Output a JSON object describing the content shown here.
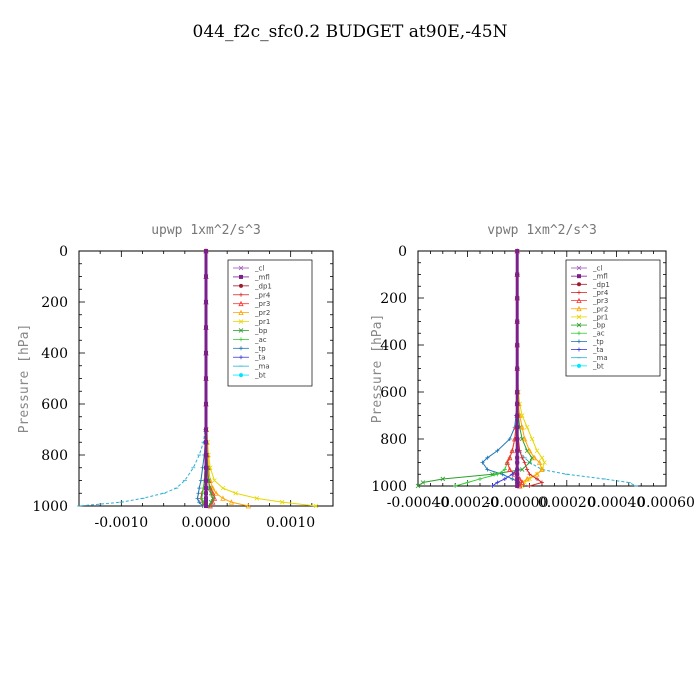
{
  "title": "044_f2c_sfc0.2  BUDGET at90E,-45N",
  "legend_entries": [
    "_cl",
    "_mfl",
    "_dp1",
    "_pr4",
    "_pr3",
    "_pr2",
    "_pr1",
    "_bp",
    "_ac",
    "_tp",
    "_ta",
    "_ma",
    "_bt"
  ],
  "colors": {
    "_cl": "#9b59b6",
    "_mfl": "#7a1f8c",
    "_dp1": "#9b1b30",
    "_pr4": "#d62728",
    "_pr3": "#ff3333",
    "_pr2": "#ffa500",
    "_pr1": "#e6d800",
    "_bp": "#2ca02c",
    "_ac": "#33cc33",
    "_tp": "#1f77b4",
    "_ta": "#3a3adf",
    "_ma": "#2ab0d6",
    "_bt": "#00e5ff"
  },
  "chart_data": [
    {
      "type": "line",
      "title": "upwp   1xm^2/s^3",
      "ylabel": "Pressure [hPa]",
      "xlim": [
        -0.0015,
        0.0015
      ],
      "ylim": [
        1000,
        0
      ],
      "xticks": [
        -0.001,
        0.0,
        0.001
      ],
      "xtick_labels": [
        "-0.0010",
        "0.0000",
        "0.0010"
      ],
      "yticks": [
        0,
        200,
        400,
        600,
        800,
        1000
      ],
      "ytick_labels": [
        "0",
        "200",
        "400",
        "600",
        "800",
        "1000"
      ],
      "legend": "top-right",
      "y": [
        0,
        100,
        200,
        300,
        400,
        500,
        600,
        700,
        750,
        800,
        850,
        900,
        930,
        950,
        970,
        985,
        1000
      ],
      "series": [
        {
          "name": "_ma",
          "values": [
            0,
            0,
            0,
            0,
            0,
            0,
            0,
            -1e-05,
            -3e-05,
            -8e-05,
            -0.00015,
            -0.00025,
            -0.00035,
            -0.0005,
            -0.00075,
            -0.001,
            -0.0015
          ]
        },
        {
          "name": "_tp",
          "values": [
            0,
            0,
            0,
            0,
            0,
            0,
            0,
            0,
            -1e-05,
            -2e-05,
            -4e-05,
            -6e-05,
            -8e-05,
            -9e-05,
            -0.0001,
            -8e-05,
            -4e-05
          ]
        },
        {
          "name": "_pr1",
          "values": [
            0,
            0,
            0,
            0,
            0,
            0,
            0,
            1e-05,
            2e-05,
            3e-05,
            5e-05,
            0.0001,
            0.0002,
            0.00035,
            0.0006,
            0.0009,
            0.0013
          ]
        },
        {
          "name": "_pr2",
          "values": [
            0,
            0,
            0,
            0,
            0,
            0,
            0,
            5e-06,
            1e-05,
            2e-05,
            3e-05,
            5e-05,
            8e-05,
            0.00012,
            0.0002,
            0.0003,
            0.0005
          ]
        },
        {
          "name": "_pr3",
          "values": [
            0,
            0,
            0,
            0,
            0,
            0,
            0,
            0,
            0,
            1e-05,
            2e-05,
            3e-05,
            5e-05,
            8e-05,
            0.0001,
            8e-05,
            5e-05
          ]
        },
        {
          "name": "_pr4",
          "values": [
            0,
            0,
            0,
            0,
            0,
            0,
            0,
            0,
            0,
            0,
            -1e-05,
            -2e-05,
            -3e-05,
            -5e-05,
            -6e-05,
            -4e-05,
            -2e-05
          ]
        },
        {
          "name": "_bp",
          "values": [
            0,
            0,
            0,
            0,
            0,
            0,
            0,
            0,
            0,
            1e-05,
            2e-05,
            3e-05,
            4e-05,
            6e-05,
            8e-05,
            6e-05,
            3e-05
          ]
        },
        {
          "name": "_ac",
          "values": [
            0,
            0,
            0,
            0,
            0,
            0,
            0,
            0,
            0,
            -5e-06,
            -1e-05,
            -2e-05,
            -3e-05,
            -4e-05,
            -5e-05,
            -3e-05,
            -1e-05
          ]
        },
        {
          "name": "_dp1",
          "values": [
            0,
            0,
            0,
            0,
            0,
            0,
            0,
            0,
            0,
            0,
            0,
            0,
            0,
            0,
            0,
            0,
            0
          ]
        },
        {
          "name": "_mfl",
          "values": [
            0,
            0,
            0,
            0,
            0,
            0,
            0,
            0,
            0,
            0,
            0,
            0,
            0,
            0,
            0,
            0,
            0
          ]
        }
      ]
    },
    {
      "type": "line",
      "title": "vpwp   1xm^2/s^3",
      "ylabel": "Pressure [hPa]",
      "xlim": [
        -0.0004,
        0.0006
      ],
      "ylim": [
        1000,
        0
      ],
      "xticks": [
        -0.0004,
        -0.0002,
        0.0,
        0.0002,
        0.0004,
        0.0006
      ],
      "xtick_labels": [
        "-0.00040",
        "-0.00020",
        "-0.00000",
        "0.00020",
        "0.00040",
        "0.00060"
      ],
      "yticks": [
        0,
        200,
        400,
        600,
        800,
        1000
      ],
      "ytick_labels": [
        "0",
        "200",
        "400",
        "600",
        "800",
        "1000"
      ],
      "legend": "top-right",
      "y": [
        0,
        100,
        200,
        300,
        400,
        500,
        600,
        650,
        700,
        750,
        800,
        850,
        880,
        900,
        930,
        950,
        970,
        985,
        1000
      ],
      "series": [
        {
          "name": "_tp",
          "values": [
            0,
            0,
            0,
            0,
            0,
            0,
            0,
            0,
            -5e-06,
            -1e-05,
            -3e-05,
            -8e-05,
            -0.00012,
            -0.00014,
            -0.00012,
            -6e-05,
            -2e-05,
            1e-05,
            0.0
          ]
        },
        {
          "name": "_ma",
          "values": [
            0,
            0,
            0,
            0,
            0,
            0,
            0,
            0,
            0,
            0,
            0,
            1e-05,
            3e-05,
            5e-05,
            0.0001,
            0.0002,
            0.00035,
            0.00045,
            0.00048
          ]
        },
        {
          "name": "_bp",
          "values": [
            0,
            0,
            0,
            0,
            0,
            0,
            0,
            0,
            5e-06,
            1e-05,
            2e-05,
            4e-05,
            6e-05,
            5e-05,
            2e-05,
            -0.0001,
            -0.0003,
            -0.00038,
            -0.0004
          ]
        },
        {
          "name": "_ac",
          "values": [
            0,
            0,
            0,
            0,
            0,
            0,
            0,
            0,
            0,
            -5e-06,
            -1e-05,
            -2e-05,
            -3e-05,
            -4e-05,
            -5e-05,
            -8e-05,
            -0.00015,
            -0.0002,
            -0.00025
          ]
        },
        {
          "name": "_pr1",
          "values": [
            0,
            0,
            0,
            0,
            0,
            0,
            5e-06,
            1e-05,
            2e-05,
            4e-05,
            6e-05,
            8e-05,
            0.0001,
            0.00011,
            0.0001,
            8e-05,
            5e-05,
            3e-05,
            2e-05
          ]
        },
        {
          "name": "_pr2",
          "values": [
            0,
            0,
            0,
            0,
            0,
            0,
            0,
            5e-06,
            1e-05,
            2e-05,
            3e-05,
            5e-05,
            7e-05,
            9e-05,
            0.0001,
            8e-05,
            4e-05,
            2e-05,
            1e-05
          ]
        },
        {
          "name": "_pr3",
          "values": [
            0,
            0,
            0,
            0,
            0,
            0,
            0,
            0,
            0,
            -5e-06,
            -1e-05,
            -2e-05,
            -3e-05,
            -4e-05,
            -3e-05,
            -1e-05,
            1e-05,
            2e-05,
            1e-05
          ]
        },
        {
          "name": "_pr4",
          "values": [
            0,
            0,
            0,
            0,
            0,
            0,
            0,
            0,
            0,
            0,
            5e-06,
            1e-05,
            2e-05,
            3e-05,
            4e-05,
            5e-05,
            8e-05,
            0.0001,
            5e-05
          ]
        },
        {
          "name": "_ta",
          "values": [
            0,
            0,
            0,
            0,
            0,
            0,
            0,
            0,
            0,
            0,
            0,
            0,
            0,
            0,
            0,
            -2e-05,
            -5e-05,
            -8e-05,
            -0.0001
          ]
        },
        {
          "name": "_dp1",
          "values": [
            0,
            0,
            0,
            0,
            0,
            0,
            0,
            0,
            0,
            0,
            0,
            0,
            0,
            0,
            0,
            0,
            0,
            0,
            0
          ]
        },
        {
          "name": "_mfl",
          "values": [
            0,
            0,
            0,
            0,
            0,
            0,
            0,
            0,
            0,
            0,
            0,
            0,
            0,
            0,
            0,
            0,
            0,
            0,
            0
          ]
        }
      ]
    }
  ]
}
